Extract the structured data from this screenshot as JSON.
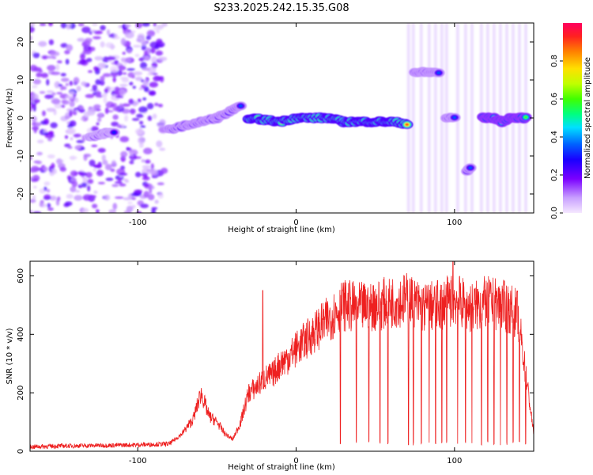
{
  "title": "S233.2025.242.15.35.G08",
  "colors": {
    "snr_line": "#ee2020",
    "background": "#ffffff",
    "axis": "#000000"
  },
  "chart_data": [
    {
      "type": "heatmap",
      "xlabel": "Height of straight line (km)",
      "ylabel": "Frequency (Hz)",
      "xlim": [
        -168,
        150
      ],
      "ylim": [
        -25,
        25
      ],
      "x_ticks": [
        -100,
        0,
        100
      ],
      "y_ticks": [
        -20,
        -10,
        0,
        10,
        20
      ],
      "colorbar": {
        "label": "Normalized spectral amplitude",
        "range": [
          0.0,
          1.0
        ],
        "ticks": [
          0.0,
          0.2,
          0.4,
          0.6,
          0.8
        ],
        "tick_labels": [
          "0.0",
          "0.2",
          "0.4",
          "0.6",
          "0.8"
        ]
      },
      "features": [
        {
          "name": "noise-cloud",
          "x_range": [
            -168,
            -83
          ],
          "freq_range": [
            -25,
            25
          ],
          "amplitude": 0.1
        },
        {
          "name": "early-trace",
          "x": [
            -130,
            -125,
            -120,
            -115
          ],
          "freq": [
            -5,
            -4.5,
            -4,
            -4
          ],
          "amplitude": 0.3
        },
        {
          "name": "ramp-trace",
          "x": [
            -80,
            -70,
            -60,
            -50,
            -40,
            -35
          ],
          "freq": [
            -3,
            -2,
            -1,
            0,
            2,
            3
          ],
          "amplitude": 0.35
        },
        {
          "name": "main-trace",
          "x": [
            -30,
            -20,
            -10,
            0,
            10,
            20,
            30,
            40,
            50,
            60,
            70
          ],
          "freq": [
            0,
            -0.5,
            -1,
            0,
            0,
            0,
            -1,
            -1,
            -1,
            -1,
            -1.5
          ],
          "amplitude": 0.9
        },
        {
          "name": "upper-blob",
          "x": [
            75,
            80,
            85,
            90
          ],
          "freq": [
            12,
            12,
            12,
            12
          ],
          "amplitude": 0.35
        },
        {
          "name": "mid-blob",
          "x": [
            95,
            100
          ],
          "freq": [
            0,
            0
          ],
          "amplitude": 0.35
        },
        {
          "name": "lower-blob",
          "x": [
            108,
            110
          ],
          "freq": [
            -14,
            -13
          ],
          "amplitude": 0.35
        },
        {
          "name": "right-trace",
          "x": [
            118,
            125,
            130,
            135,
            140,
            145
          ],
          "freq": [
            0,
            0,
            -1,
            0,
            0,
            0
          ],
          "amplitude": 0.6
        }
      ]
    },
    {
      "type": "line",
      "xlabel": "Height of straight line (km)",
      "ylabel": "SNR (10 * v/v)",
      "xlim": [
        -168,
        150
      ],
      "ylim": [
        0,
        650
      ],
      "x_ticks": [
        -100,
        0,
        100
      ],
      "y_ticks": [
        0,
        200,
        400,
        600
      ],
      "series": [
        {
          "name": "SNR",
          "x": [
            -168,
            -150,
            -120,
            -100,
            -80,
            -72,
            -65,
            -60,
            -55,
            -50,
            -45,
            -40,
            -35,
            -30,
            -25,
            -20,
            -15,
            -10,
            -5,
            0,
            10,
            20,
            30,
            40,
            50,
            60,
            70,
            80,
            90,
            100,
            110,
            120,
            130,
            140,
            150
          ],
          "y": [
            15,
            18,
            20,
            22,
            25,
            60,
            110,
            200,
            120,
            100,
            60,
            40,
            100,
            200,
            220,
            250,
            260,
            300,
            320,
            350,
            400,
            450,
            500,
            490,
            500,
            510,
            520,
            490,
            500,
            520,
            490,
            510,
            500,
            470,
            60
          ]
        }
      ],
      "dropouts_x": [
        28,
        38,
        46,
        53,
        58,
        71,
        74,
        79,
        84,
        88,
        92,
        95,
        102,
        107,
        111,
        117,
        121,
        125,
        129,
        133,
        137,
        141,
        145
      ],
      "spike": {
        "x": [
          -21,
          99
        ],
        "y": [
          550,
          650
        ]
      }
    }
  ]
}
